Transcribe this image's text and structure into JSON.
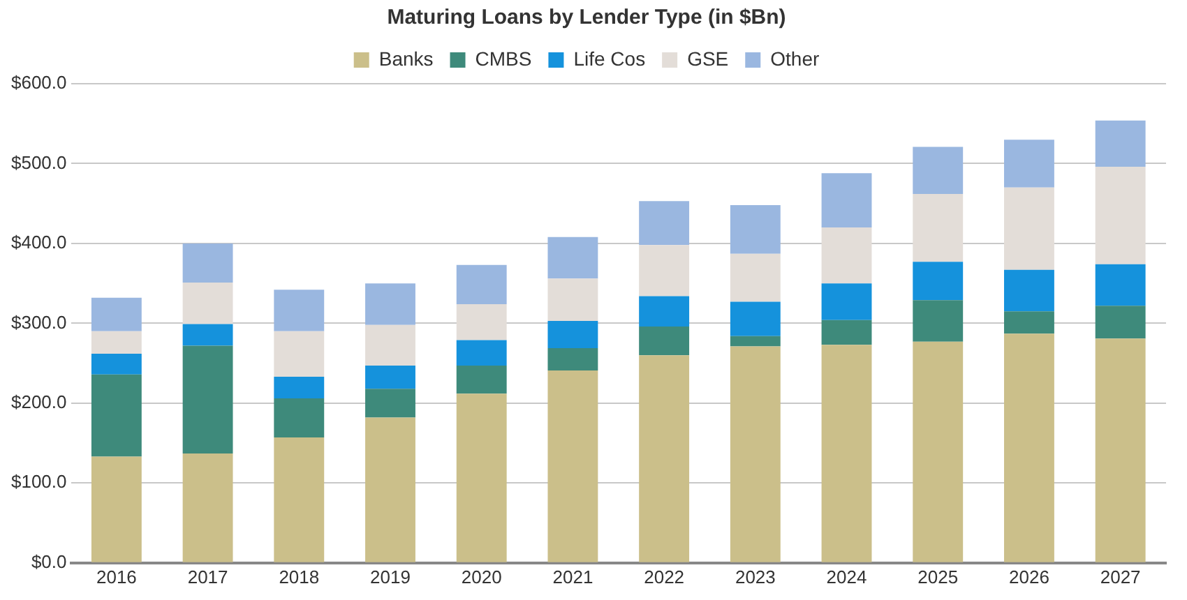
{
  "chart_data": {
    "type": "bar",
    "title": "Maturing Loans by Lender Type (in $Bn)",
    "stacked": true,
    "grid": "y",
    "legend": "top",
    "categories": [
      "2016",
      "2017",
      "2018",
      "2019",
      "2020",
      "2021",
      "2022",
      "2023",
      "2024",
      "2025",
      "2026",
      "2027"
    ],
    "ylim": [
      0,
      600
    ],
    "yticks": [
      {
        "value": 0,
        "label": "$0.0"
      },
      {
        "value": 100,
        "label": "$100.0"
      },
      {
        "value": 200,
        "label": "$200.0"
      },
      {
        "value": 300,
        "label": "$300.0"
      },
      {
        "value": 400,
        "label": "$400.0"
      },
      {
        "value": 500,
        "label": "$500.0"
      },
      {
        "value": 600,
        "label": "$600.0"
      }
    ],
    "series": [
      {
        "name": "Banks",
        "color": "#cbbf8a",
        "values": [
          133,
          137,
          157,
          182,
          212,
          241,
          260,
          271,
          273,
          277,
          287,
          281
        ]
      },
      {
        "name": "CMBS",
        "color": "#3e8a7b",
        "values": [
          103,
          135,
          49,
          36,
          35,
          28,
          36,
          13,
          31,
          52,
          28,
          41
        ]
      },
      {
        "name": "Life Cos",
        "color": "#1592dc",
        "values": [
          26,
          27,
          27,
          29,
          32,
          34,
          38,
          43,
          46,
          48,
          52,
          52
        ]
      },
      {
        "name": "GSE",
        "color": "#e3ddd8",
        "values": [
          28,
          52,
          57,
          51,
          45,
          53,
          64,
          60,
          70,
          85,
          103,
          122
        ]
      },
      {
        "name": "Other",
        "color": "#9ab7e0",
        "values": [
          42,
          49,
          52,
          52,
          49,
          52,
          55,
          61,
          68,
          59,
          60,
          58
        ]
      }
    ]
  }
}
